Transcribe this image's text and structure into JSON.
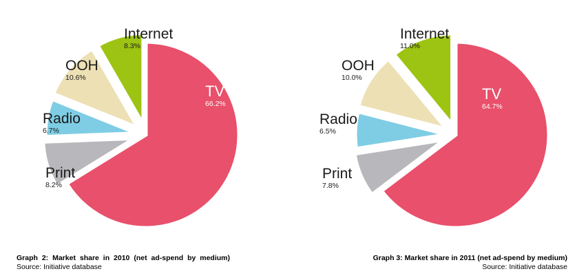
{
  "chart_data": [
    {
      "type": "pie",
      "categories": [
        "TV",
        "Print",
        "Radio",
        "OOH",
        "Internet"
      ],
      "values": [
        66.2,
        8.2,
        6.7,
        10.6,
        8.3
      ],
      "value_labels": [
        "66.2%",
        "8.2%",
        "6.7%",
        "10.6%",
        "8.3%"
      ],
      "colors": [
        "#e8506b",
        "#b8b8bc",
        "#7fcde4",
        "#ede0b4",
        "#9dc313"
      ],
      "exploded": true,
      "caption": "Graph 2: Market share in 2010 (net ad-spend by medium)",
      "source": "Source: Initiative database"
    },
    {
      "type": "pie",
      "categories": [
        "TV",
        "Print",
        "Radio",
        "OOH",
        "Internet"
      ],
      "values": [
        64.7,
        7.8,
        6.5,
        10.0,
        11.0
      ],
      "value_labels": [
        "64.7%",
        "7.8%",
        "6.5%",
        "10.0%",
        "11.0%"
      ],
      "colors": [
        "#e8506b",
        "#b8b8bc",
        "#7fcde4",
        "#ede0b4",
        "#9dc313"
      ],
      "exploded": true,
      "caption": "Graph 3: Market share in 2011 (net ad-spend by medium)",
      "source": "Source: Initiative database"
    }
  ]
}
